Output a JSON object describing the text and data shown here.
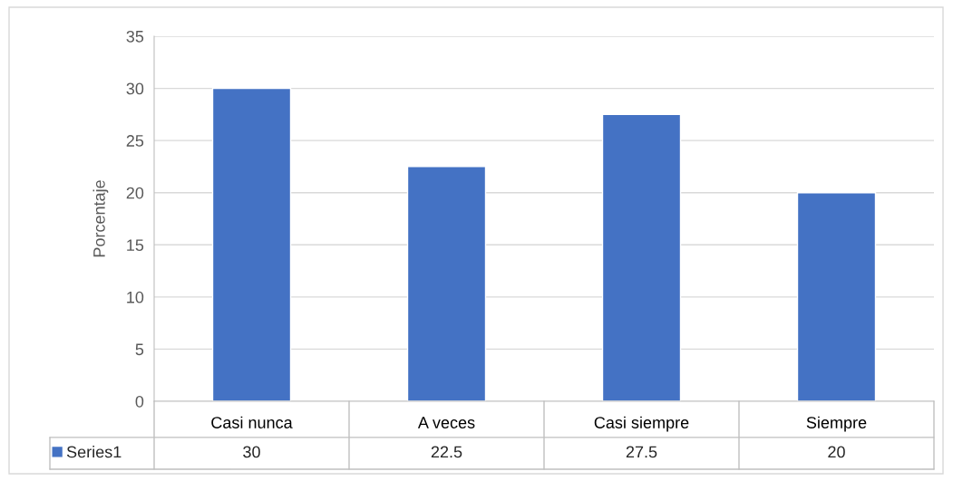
{
  "chart_data": {
    "type": "bar",
    "ylabel": "Porcentaje",
    "categories": [
      "Casi nunca",
      "A veces",
      "Casi siempre",
      "Siempre"
    ],
    "series": [
      {
        "name": "Series1",
        "color": "#4472c4",
        "values": [
          30,
          22.5,
          27.5,
          20
        ]
      }
    ],
    "ylim": [
      0,
      35
    ],
    "yticks": [
      0,
      5,
      10,
      15,
      20,
      25,
      30,
      35
    ],
    "grid": "y",
    "data_labels": true,
    "legend": "bottom"
  }
}
